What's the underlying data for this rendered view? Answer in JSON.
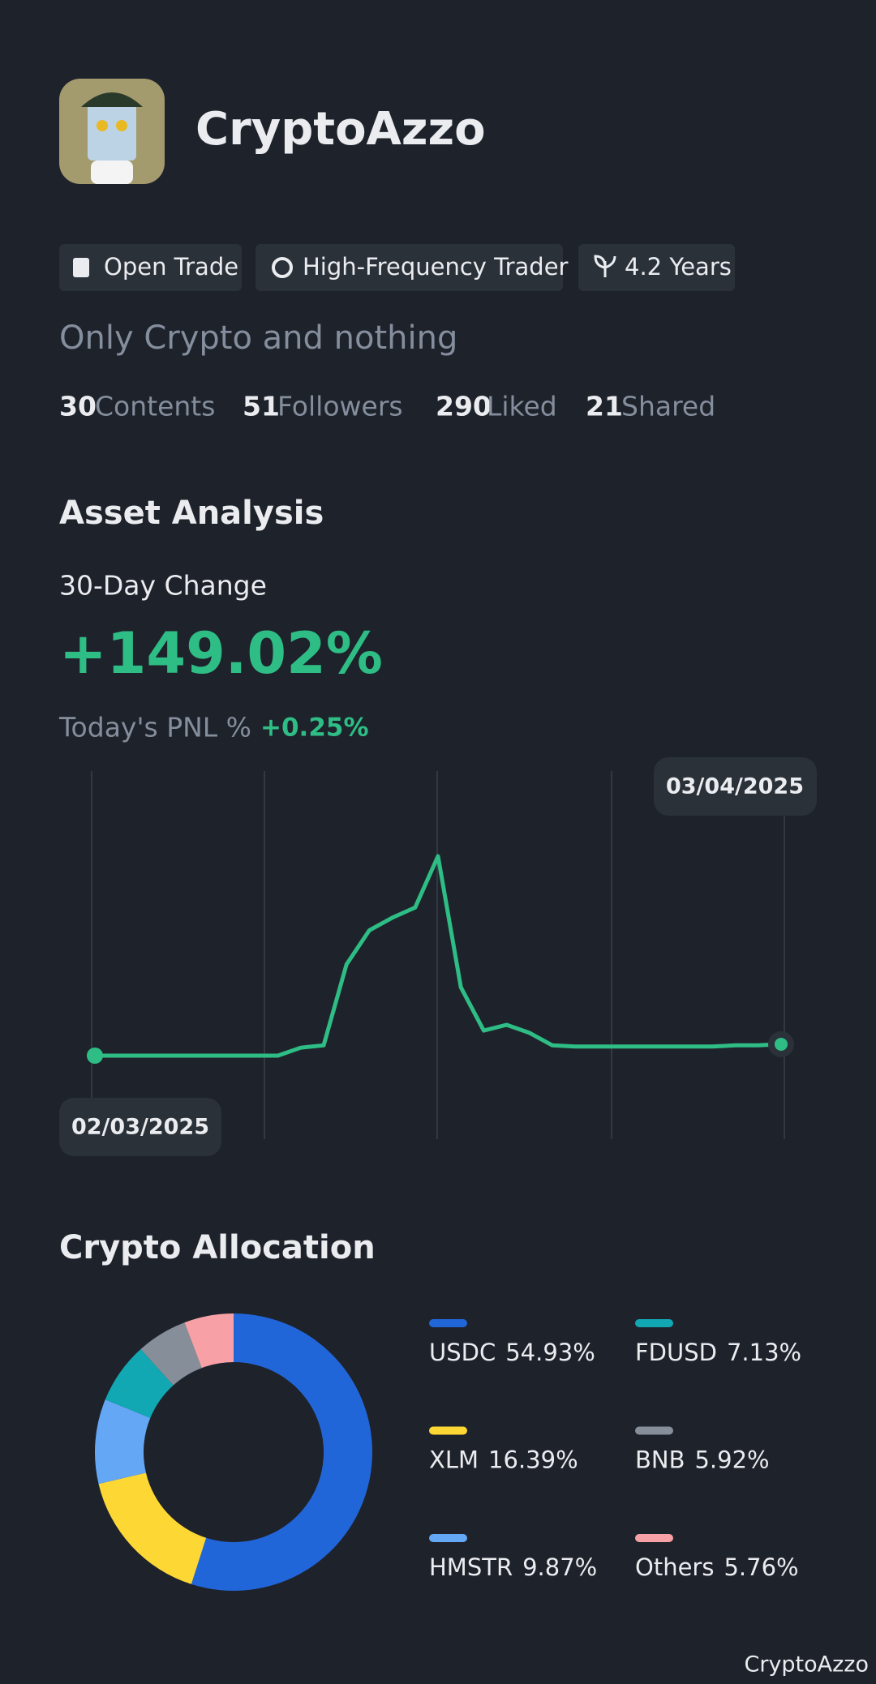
{
  "profile": {
    "name": "CryptoAzzo",
    "tags": [
      "Open Trade",
      "High-Frequency Trader",
      "4.2 Years"
    ],
    "bio": "Only Crypto and nothing",
    "stats": [
      {
        "value": 30,
        "label": "Contents"
      },
      {
        "value": 51,
        "label": "Followers"
      },
      {
        "value": 290,
        "label": "Liked"
      },
      {
        "value": 21,
        "label": "Shared"
      }
    ]
  },
  "asset_analysis": {
    "title": "Asset Analysis",
    "change_label": "30-Day Change",
    "change": "+149.02%",
    "pnl_label": "Today's PNL %",
    "pnl": "+0.25%"
  },
  "chart_data": [
    {
      "type": "line",
      "color": "#2ebd85",
      "categories": [
        "02/03/2025",
        null,
        null,
        null,
        null,
        null,
        null,
        null,
        null,
        null,
        null,
        null,
        null,
        null,
        null,
        null,
        null,
        null,
        null,
        null,
        null,
        null,
        null,
        null,
        null,
        null,
        null,
        null,
        null,
        null,
        "03/04/2025"
      ],
      "values": [
        0,
        0,
        0,
        0,
        0,
        0,
        0,
        0,
        0,
        7,
        9,
        80,
        110,
        121,
        130,
        175,
        60,
        22,
        27,
        20,
        9,
        8,
        8,
        8,
        8,
        8,
        8,
        8,
        9,
        9,
        10
      ]
    },
    {
      "type": "donut",
      "title": "Crypto Allocation",
      "categories": [
        "USDC",
        "XLM",
        "HMSTR",
        "FDUSD",
        "BNB",
        "Others"
      ],
      "values": [
        54.93,
        16.39,
        9.87,
        7.13,
        5.92,
        5.76
      ],
      "value_labels": [
        "54.93%",
        "16.39%",
        "9.87%",
        "7.13%",
        "5.92%",
        "5.76%"
      ],
      "colors": [
        "#2166d9",
        "#fdd835",
        "#64a8f5",
        "#11a8b4",
        "#858e99",
        "#f7a1a6"
      ]
    }
  ],
  "footer": "CryptoAzzo"
}
